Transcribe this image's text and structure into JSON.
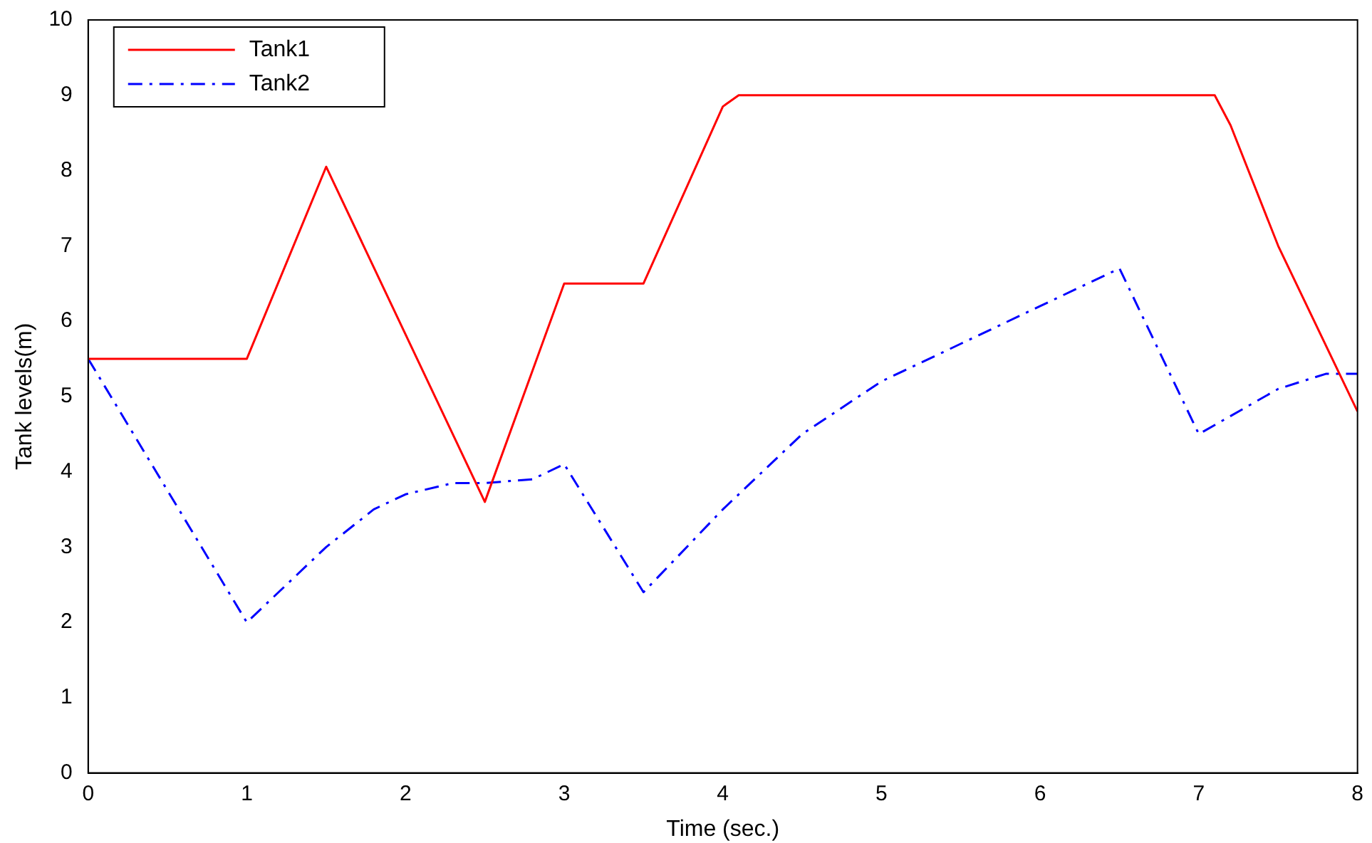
{
  "chart_data": {
    "type": "line",
    "xlabel": "Time (sec.)",
    "ylabel": "Tank levels(m)",
    "xlim": [
      0,
      8
    ],
    "xticks": [
      0,
      1,
      2,
      3,
      4,
      5,
      6,
      7,
      8
    ],
    "ylim": [
      0,
      10
    ],
    "yticks": [
      0,
      1,
      2,
      3,
      4,
      5,
      6,
      7,
      8,
      9,
      10
    ],
    "legend": "top left",
    "grid": false,
    "series": [
      {
        "name": "Tank1",
        "color": "#ff0000",
        "line_style": "solid",
        "x": [
          0,
          1,
          1.5,
          2.5,
          3,
          3.5,
          4,
          4.1,
          7.1,
          7.2,
          7.5,
          8
        ],
        "values": [
          5.5,
          5.5,
          8.05,
          3.6,
          6.5,
          6.5,
          8.85,
          9,
          9,
          8.6,
          7,
          4.8
        ]
      },
      {
        "name": "Tank2",
        "color": "#0000ff",
        "line_style": "dashed",
        "x": [
          0,
          1,
          1.5,
          1.8,
          2,
          2.3,
          2.5,
          2.8,
          3,
          3.5,
          4,
          4.5,
          5,
          5.5,
          6,
          6.5,
          7,
          7.5,
          7.8,
          8
        ],
        "values": [
          5.5,
          2,
          3,
          3.5,
          3.7,
          3.85,
          3.85,
          3.9,
          4.1,
          2.4,
          3.5,
          4.5,
          5.2,
          5.7,
          6.2,
          6.7,
          4.5,
          5.1,
          5.3,
          5.3
        ]
      }
    ]
  }
}
